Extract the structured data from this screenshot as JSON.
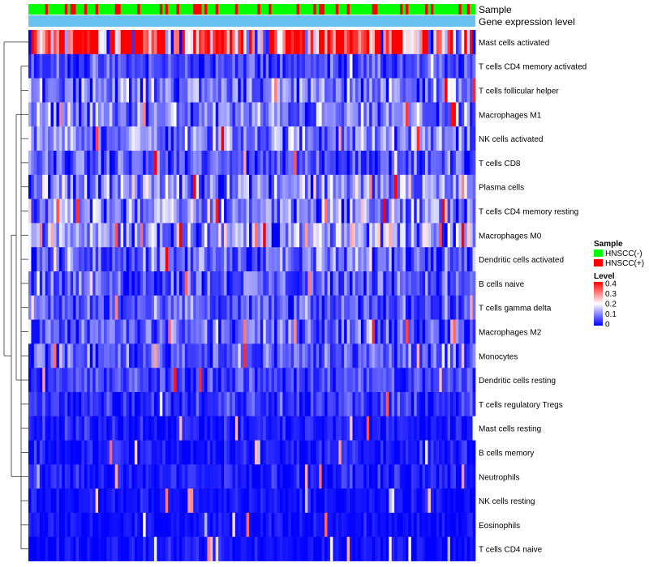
{
  "chart_data": {
    "type": "heatmap",
    "title": "",
    "annotation_tracks": [
      "Sample",
      "Gene expression level"
    ],
    "rows": [
      "Mast cells activated",
      "T cells CD4 memory activated",
      "T cells follicular helper",
      "Macrophages M1",
      "NK cells activated",
      "T cells CD8",
      "Plasma cells",
      "T cells CD4 memory resting",
      "Macrophages M0",
      "Dendritic cells activated",
      "B cells naive",
      "T cells gamma delta",
      "Macrophages M2",
      "Monocytes",
      "Dendritic cells resting",
      "T cells regulatory  Tregs",
      "Mast cells resting",
      "B cells memory",
      "Neutrophils",
      "NK cells resting",
      "Eosinophils",
      "T cells CD4 naive"
    ],
    "row_mean_level": [
      0.33,
      0.05,
      0.1,
      0.09,
      0.1,
      0.06,
      0.11,
      0.11,
      0.12,
      0.08,
      0.07,
      0.06,
      0.07,
      0.07,
      0.05,
      0.04,
      0.02,
      0.02,
      0.02,
      0.01,
      0.01,
      0.01
    ],
    "n_samples": 160,
    "sample_legend": {
      "title": "Sample",
      "items": [
        {
          "label": "HNSCC(-)",
          "color": "#00ff00"
        },
        {
          "label": "HNSCC(+)",
          "color": "#ff0000"
        }
      ]
    },
    "level_legend": {
      "title": "Level",
      "range": [
        0,
        0.4
      ],
      "ticks": [
        "0.4",
        "0.3",
        "0.2",
        "0.1",
        "0"
      ],
      "colors": [
        "#0000ff",
        "#ffffff",
        "#ff0000"
      ]
    },
    "expression_track_color": "#67c2f1"
  }
}
